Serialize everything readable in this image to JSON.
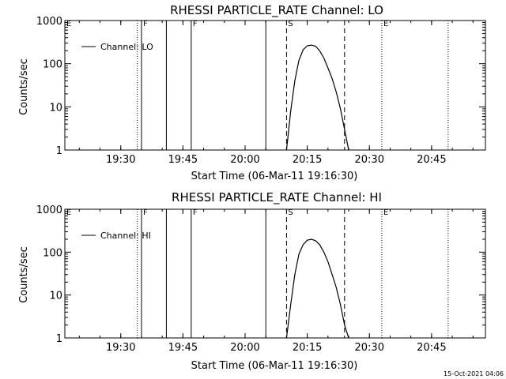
{
  "chart_data": [
    {
      "type": "line",
      "title": "RHESSI PARTICLE_RATE Channel: LO",
      "xlabel": "Start Time (06-Mar-11 19:16:30)",
      "ylabel": "Counts/sec",
      "y_scale": "log",
      "ylim": [
        1,
        1000
      ],
      "xlim": [
        "19:16:30",
        "20:58:00"
      ],
      "x_ticks": [
        "19:30",
        "19:45",
        "20:00",
        "20:15",
        "20:30",
        "20:45"
      ],
      "y_ticks": [
        "1",
        "10",
        "100",
        "1000"
      ],
      "legend": {
        "position": "top-left",
        "entries": [
          "Channel: LO"
        ]
      },
      "series": [
        {
          "name": "Channel: LO",
          "x": [
            "20:10",
            "20:11",
            "20:12",
            "20:13",
            "20:14",
            "20:15",
            "20:16",
            "20:17",
            "20:18",
            "20:19",
            "20:20",
            "20:21",
            "20:22",
            "20:23",
            "20:24",
            "20:25"
          ],
          "y": [
            1,
            8,
            40,
            120,
            210,
            260,
            270,
            255,
            200,
            135,
            80,
            45,
            22,
            9,
            3,
            1
          ]
        }
      ],
      "vertical_lines": [
        {
          "time": "19:34",
          "style": "dotted",
          "label": ""
        },
        {
          "time": "19:35",
          "style": "solid",
          "label": "F"
        },
        {
          "time": "19:41",
          "style": "solid",
          "label": ""
        },
        {
          "time": "19:47",
          "style": "solid",
          "label": "F"
        },
        {
          "time": "20:05",
          "style": "solid",
          "label": ""
        },
        {
          "time": "20:10",
          "style": "dashed",
          "label": "S"
        },
        {
          "time": "20:24",
          "style": "dashed",
          "label": ""
        },
        {
          "time": "20:33",
          "style": "dotted",
          "label": "E"
        },
        {
          "time": "20:49",
          "style": "dotted",
          "label": ""
        },
        {
          "time": "19:16:30",
          "style": "none",
          "label": "E"
        }
      ]
    },
    {
      "type": "line",
      "title": "RHESSI PARTICLE_RATE Channel: HI",
      "xlabel": "Start Time (06-Mar-11 19:16:30)",
      "ylabel": "Counts/sec",
      "y_scale": "log",
      "ylim": [
        1,
        1000
      ],
      "xlim": [
        "19:16:30",
        "20:58:00"
      ],
      "x_ticks": [
        "19:30",
        "19:45",
        "20:00",
        "20:15",
        "20:30",
        "20:45"
      ],
      "y_ticks": [
        "1",
        "10",
        "100",
        "1000"
      ],
      "legend": {
        "position": "top-left",
        "entries": [
          "Channel: HI"
        ]
      },
      "series": [
        {
          "name": "Channel: HI",
          "x": [
            "20:10",
            "20:11",
            "20:12",
            "20:13",
            "20:14",
            "20:15",
            "20:16",
            "20:17",
            "20:18",
            "20:19",
            "20:20",
            "20:21",
            "20:22",
            "20:23",
            "20:24",
            "20:25"
          ],
          "y": [
            1,
            6,
            30,
            90,
            150,
            190,
            200,
            185,
            150,
            100,
            60,
            30,
            15,
            6,
            2,
            1
          ]
        }
      ],
      "vertical_lines": [
        {
          "time": "19:34",
          "style": "dotted",
          "label": ""
        },
        {
          "time": "19:35",
          "style": "solid",
          "label": "F"
        },
        {
          "time": "19:41",
          "style": "solid",
          "label": ""
        },
        {
          "time": "19:47",
          "style": "solid",
          "label": "F"
        },
        {
          "time": "20:05",
          "style": "solid",
          "label": ""
        },
        {
          "time": "20:10",
          "style": "dashed",
          "label": "S"
        },
        {
          "time": "20:24",
          "style": "dashed",
          "label": ""
        },
        {
          "time": "20:33",
          "style": "dotted",
          "label": "E"
        },
        {
          "time": "20:49",
          "style": "dotted",
          "label": ""
        },
        {
          "time": "19:16:30",
          "style": "none",
          "label": "E"
        }
      ]
    }
  ],
  "timestamp": "15-Oct-2021 04:06"
}
